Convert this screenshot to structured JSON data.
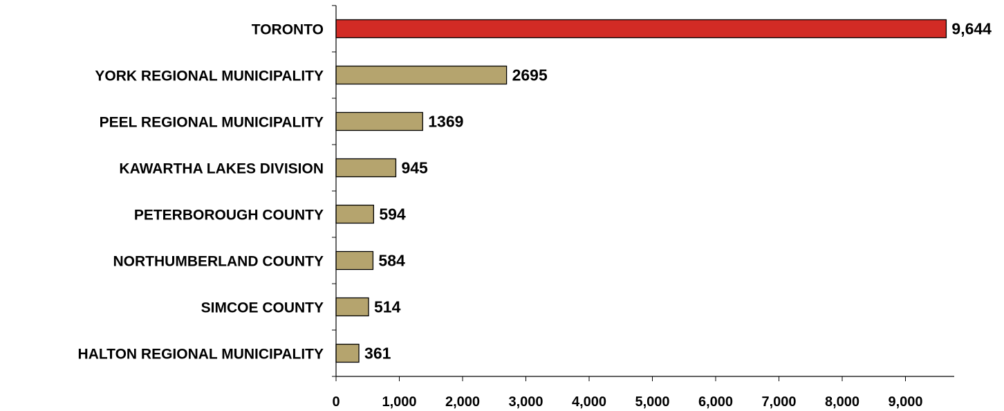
{
  "chart_data": {
    "type": "bar",
    "orientation": "horizontal",
    "title": "",
    "xlabel": "",
    "ylabel": "",
    "categories": [
      "TORONTO",
      "YORK REGIONAL MUNICIPALITY",
      "PEEL REGIONAL MUNICIPALITY",
      "KAWARTHA LAKES DIVISION",
      "PETERBOROUGH COUNTY",
      "NORTHUMBERLAND COUNTY",
      "SIMCOE COUNTY",
      "HALTON REGIONAL MUNICIPALITY"
    ],
    "values": [
      9644,
      2695,
      1369,
      945,
      594,
      584,
      514,
      361
    ],
    "value_labels": [
      "9,644",
      "2695",
      "1369",
      "945",
      "594",
      "584",
      "514",
      "361"
    ],
    "bar_colors": [
      "#d22b25",
      "#b5a46e",
      "#b5a46e",
      "#b5a46e",
      "#b5a46e",
      "#b5a46e",
      "#b5a46e",
      "#b5a46e"
    ],
    "xlim": [
      0,
      9800
    ],
    "xticks": [
      0,
      1000,
      2000,
      3000,
      4000,
      5000,
      6000,
      7000,
      8000,
      9000
    ],
    "xtick_labels": [
      "0",
      "1,000",
      "2,000",
      "3,000",
      "4,000",
      "5,000",
      "6,000",
      "7,000",
      "8,000",
      "9,000"
    ],
    "grid": false,
    "legend": "none"
  }
}
